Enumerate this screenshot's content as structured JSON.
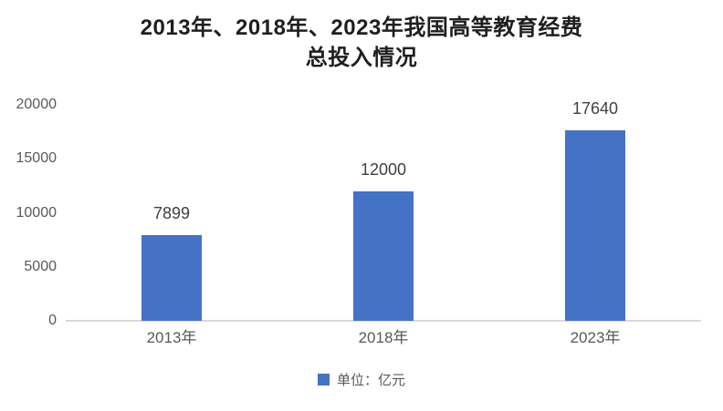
{
  "chart_data": {
    "type": "bar",
    "title": "2013年、2018年、2023年我国高等教育经费总投入情况",
    "title_lines": [
      "2013年、2018年、2023年我国高等教育经费",
      "总投入情况"
    ],
    "categories": [
      "2013年",
      "2018年",
      "2023年"
    ],
    "values": [
      7899,
      12000,
      17640
    ],
    "data_labels": [
      "7899",
      "12000",
      "17640"
    ],
    "xlabel": "",
    "ylabel": "",
    "ylim": [
      0,
      20000
    ],
    "yticks": [
      0,
      5000,
      10000,
      15000,
      20000
    ],
    "grid": false,
    "legend": {
      "label": "单位：亿元",
      "position": "bottom"
    },
    "colors": {
      "bar": "#4472C4",
      "axis_line": "#d9d9d9",
      "tick_label": "#595959",
      "data_label": "#3f3f3f",
      "title": "#1f1f1f",
      "background": "#ffffff"
    }
  }
}
